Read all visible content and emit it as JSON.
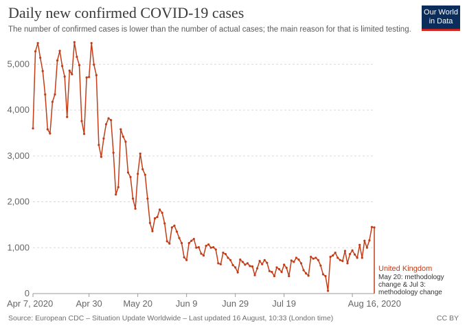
{
  "header": {
    "title": "Daily new confirmed COVID-19 cases",
    "subtitle": "The number of confirmed cases is lower than the number of actual cases; the main reason for that is limited testing.",
    "logo_line1": "Our World",
    "logo_line2": "in Data"
  },
  "footer": {
    "source": "Source: European CDC – Situation Update Worldwide – Last updated 16 August, 10:33 (London time)",
    "license": "CC BY"
  },
  "colors": {
    "series": "#c23c17",
    "logo_bg": "#0b2d5b",
    "logo_accent": "#ce261e",
    "grid": "#d9d9d9"
  },
  "chart_data": {
    "type": "line",
    "title": "Daily new confirmed COVID-19 cases",
    "xlabel": "",
    "ylabel": "",
    "ylim": [
      0,
      5500
    ],
    "y_ticks": [
      0,
      1000,
      2000,
      3000,
      4000,
      5000
    ],
    "y_tick_labels": [
      "0",
      "1,000",
      "2,000",
      "3,000",
      "4,000",
      "5,000"
    ],
    "x_tick_labels": [
      "Apr 7, 2020",
      "Apr 30",
      "May 20",
      "Jun 9",
      "Jun 29",
      "Jul 19",
      "Aug 16, 2020"
    ],
    "x_tick_day_index": [
      0,
      23,
      43,
      63,
      83,
      103,
      131
    ],
    "grid": "horizontal",
    "series": [
      {
        "name": "United Kingdom",
        "annotation": [
          "May 20: methodology",
          "change & Jul 3:",
          "methodology change"
        ],
        "start_date": "Apr 7, 2020",
        "values": [
          3600,
          5280,
          5460,
          5140,
          4850,
          4340,
          3580,
          3490,
          4180,
          4340,
          5080,
          5290,
          4960,
          4730,
          3850,
          4860,
          4780,
          5480,
          5160,
          4980,
          3760,
          3480,
          4710,
          4720,
          5460,
          4990,
          4760,
          3240,
          2980,
          3380,
          3690,
          3820,
          3780,
          3070,
          2160,
          2320,
          3580,
          3420,
          3310,
          2640,
          2540,
          2070,
          1850,
          2610,
          3050,
          2710,
          2590,
          2070,
          1540,
          1360,
          1640,
          1670,
          1830,
          1760,
          1530,
          1140,
          1090,
          1440,
          1480,
          1350,
          1210,
          1100,
          790,
          730,
          1100,
          1150,
          1190,
          1000,
          1010,
          870,
          830,
          1040,
          1070,
          1000,
          1010,
          960,
          660,
          640,
          890,
          860,
          780,
          730,
          620,
          570,
          460,
          740,
          690,
          630,
          660,
          600,
          590,
          400,
          550,
          710,
          640,
          730,
          670,
          490,
          470,
          380,
          570,
          530,
          470,
          630,
          560,
          380,
          720,
          690,
          780,
          740,
          660,
          510,
          440,
          390,
          800,
          760,
          780,
          730,
          610,
          420,
          380,
          60,
          800,
          830,
          890,
          780,
          730,
          710,
          930,
          660,
          860,
          940,
          850,
          780,
          1060,
          780,
          1150,
          1000,
          1160,
          1450,
          1440
        ]
      }
    ]
  }
}
